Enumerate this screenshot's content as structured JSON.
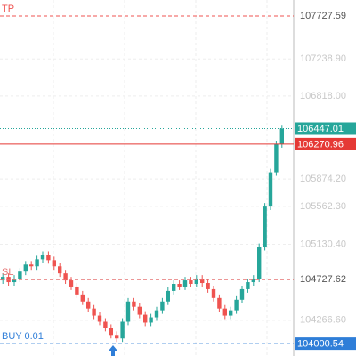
{
  "chart_data": {
    "type": "candlestick",
    "ylim": [
      103860,
      107910
    ],
    "yticks": [
      {
        "value": 107238.9,
        "label": "107238.90"
      },
      {
        "value": 106818,
        "label": "106818.00"
      },
      {
        "value": 105874.2,
        "label": "105874.20"
      },
      {
        "value": 105562.3,
        "label": "105562.30"
      },
      {
        "value": 105130.4,
        "label": "105130.40"
      },
      {
        "value": 104266.6,
        "label": "104266.60"
      }
    ],
    "grid": true,
    "up_color": "#26a69a",
    "down_color": "#ef5350",
    "open": [
      104720,
      104760,
      104700,
      104740,
      104820,
      104900,
      104880,
      104960,
      105010,
      104950,
      104880,
      104800,
      104720,
      104650,
      104560,
      104480,
      104400,
      104320,
      104250,
      104180,
      104100,
      104060,
      104250,
      104480,
      104420,
      104330,
      104240,
      104300,
      104380,
      104480,
      104600,
      104680,
      104650,
      104720,
      104680,
      104740,
      104690,
      104620,
      104520,
      104400,
      104320,
      104380,
      104500,
      104620,
      104700,
      104740,
      105100,
      105560,
      105950,
      106270
    ],
    "high": [
      104800,
      104800,
      104780,
      104860,
      104940,
      104940,
      105000,
      105050,
      105050,
      104990,
      104920,
      104840,
      104760,
      104690,
      104600,
      104520,
      104440,
      104360,
      104290,
      104220,
      104140,
      104290,
      104520,
      104520,
      104460,
      104370,
      104340,
      104420,
      104520,
      104640,
      104720,
      104720,
      104760,
      104760,
      104780,
      104780,
      104730,
      104660,
      104560,
      104440,
      104420,
      104540,
      104660,
      104740,
      104780,
      105140,
      105600,
      105990,
      106310,
      106480
    ],
    "low": [
      104680,
      104660,
      104660,
      104700,
      104780,
      104840,
      104840,
      104920,
      104910,
      104840,
      104760,
      104680,
      104610,
      104520,
      104440,
      104360,
      104280,
      104210,
      104140,
      104060,
      104020,
      104020,
      104210,
      104380,
      104290,
      104200,
      104200,
      104260,
      104340,
      104440,
      104560,
      104610,
      104610,
      104640,
      104640,
      104650,
      104580,
      104480,
      104360,
      104280,
      104280,
      104340,
      104460,
      104580,
      104660,
      104700,
      105060,
      105520,
      105910,
      106230
    ],
    "close": [
      104760,
      104700,
      104740,
      104820,
      104900,
      104880,
      104960,
      105010,
      104950,
      104880,
      104800,
      104720,
      104650,
      104560,
      104480,
      104400,
      104320,
      104250,
      104180,
      104100,
      104060,
      104250,
      104480,
      104420,
      104330,
      104240,
      104300,
      104380,
      104480,
      104600,
      104680,
      104650,
      104720,
      104680,
      104740,
      104690,
      104620,
      104520,
      104400,
      104320,
      104380,
      104500,
      104620,
      104700,
      104740,
      105100,
      105560,
      105950,
      106270,
      106447.01
    ],
    "levels": [
      {
        "name": "TP",
        "value": 107727.59,
        "color": "#ef5350",
        "dash": "4 3",
        "label_box": false
      },
      {
        "value": 106447.01,
        "color": "#26a69a",
        "dash": "1 2",
        "label_box": true
      },
      {
        "value": 106270.96,
        "color": "#e53935",
        "dash": "none",
        "label_box": true
      },
      {
        "name": "SL",
        "value": 104727.62,
        "color": "#e57373",
        "dash": "4 3",
        "label_box": false
      },
      {
        "name": "BUY 0.01",
        "value": 104000.54,
        "color": "#2f7ed8",
        "dash": "4 3",
        "label_box": true
      }
    ]
  }
}
